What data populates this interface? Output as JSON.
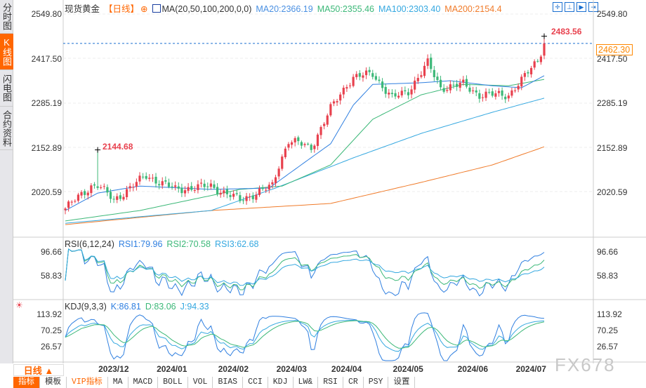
{
  "sidebar": {
    "items": [
      {
        "label": "分时图",
        "active": false
      },
      {
        "label": "K线图",
        "active": true
      },
      {
        "label": "闪电图",
        "active": false
      },
      {
        "label": "合约资料",
        "active": false
      }
    ]
  },
  "header": {
    "title": "现货黄金",
    "period": "【日线】",
    "indicator": "MA(20,50,100,200,0,0)",
    "ma20": "MA20:2366.19",
    "ma50": "MA50:2355.46",
    "ma100": "MA100:2303.40",
    "ma200": "MA200:2154.4"
  },
  "colors": {
    "up": "#e8414e",
    "down": "#3cb878",
    "ma20": "#2f7fe0",
    "ma50": "#3cb878",
    "ma100": "#35a8e0",
    "ma200": "#f07b2a"
  },
  "price_axis": [
    "2549.80",
    "2417.50",
    "2285.19",
    "2152.89",
    "2020.59"
  ],
  "current_price": "2462.30",
  "annotations": {
    "high": "2483.56",
    "spike": "2144.68"
  },
  "rsi": {
    "title": "RSI(6,12,24)",
    "rsi1": "RSI1:79.96",
    "rsi2": "RSI2:70.58",
    "rsi3": "RSI3:62.68",
    "axis": [
      "96.66",
      "58.83"
    ]
  },
  "kdj": {
    "title": "KDJ(9,3,3)",
    "k": "K:86.81",
    "d": "D:83.06",
    "j": "J:94.33",
    "axis": [
      "113.92",
      "70.25",
      "26.57"
    ]
  },
  "period_selector": "日线 ▲",
  "watermark": "FX678",
  "tabs": [
    "指标",
    "模板",
    "VIP指标",
    "MA",
    "MACD",
    "BOLL",
    "VOL",
    "BIAS",
    "CCI",
    "KDJ",
    "LW&",
    "RSI",
    "CR",
    "PSY",
    "设置"
  ],
  "chart_data": {
    "type": "candlestick",
    "candles": 149,
    "close_keypoints": [
      [
        0,
        1970
      ],
      [
        8,
        2037
      ],
      [
        10,
        2040
      ],
      [
        15,
        1995
      ],
      [
        25,
        2068
      ],
      [
        34,
        2027
      ],
      [
        45,
        2037
      ],
      [
        54,
        1995
      ],
      [
        64,
        2037
      ],
      [
        66,
        2100
      ],
      [
        69,
        2173
      ],
      [
        76,
        2152
      ],
      [
        82,
        2267
      ],
      [
        87,
        2340
      ],
      [
        89,
        2361
      ],
      [
        95,
        2372
      ],
      [
        101,
        2299
      ],
      [
        106,
        2320
      ],
      [
        112,
        2403
      ],
      [
        116,
        2330
      ],
      [
        123,
        2340
      ],
      [
        128,
        2309
      ],
      [
        137,
        2309
      ],
      [
        141,
        2351
      ],
      [
        146,
        2414
      ],
      [
        148,
        2462
      ]
    ],
    "ma20": [
      [
        0,
        1964
      ],
      [
        10,
        2016
      ],
      [
        23,
        2037
      ],
      [
        45,
        2027
      ],
      [
        63,
        2031
      ],
      [
        71,
        2087
      ],
      [
        82,
        2163
      ],
      [
        89,
        2278
      ],
      [
        95,
        2340
      ],
      [
        110,
        2345
      ],
      [
        119,
        2351
      ],
      [
        132,
        2336
      ],
      [
        141,
        2330
      ],
      [
        148,
        2366
      ]
    ],
    "ma50": [
      [
        0,
        1933
      ],
      [
        23,
        1964
      ],
      [
        54,
        2027
      ],
      [
        67,
        2037
      ],
      [
        82,
        2100
      ],
      [
        95,
        2236
      ],
      [
        110,
        2309
      ],
      [
        123,
        2340
      ],
      [
        137,
        2336
      ],
      [
        148,
        2355
      ]
    ],
    "ma100": [
      [
        0,
        1926
      ],
      [
        45,
        1964
      ],
      [
        65,
        2031
      ],
      [
        89,
        2121
      ],
      [
        110,
        2194
      ],
      [
        132,
        2257
      ],
      [
        148,
        2299
      ]
    ],
    "ma200": [
      [
        0,
        1922
      ],
      [
        45,
        1964
      ],
      [
        82,
        1985
      ],
      [
        110,
        2048
      ],
      [
        132,
        2100
      ],
      [
        148,
        2154
      ]
    ],
    "high_marks": [
      [
        10,
        2144.68
      ],
      [
        148,
        2483.56
      ]
    ],
    "month_labels": [
      [
        15,
        "2023/12"
      ],
      [
        33,
        "2024/01"
      ],
      [
        52,
        "2024/02"
      ],
      [
        70,
        "2024/03"
      ],
      [
        87,
        "2024/04"
      ],
      [
        106,
        "2024/05"
      ],
      [
        126,
        "2024/06"
      ],
      [
        144,
        "2024/07"
      ]
    ],
    "ylim": [
      1900,
      2549.8
    ]
  }
}
